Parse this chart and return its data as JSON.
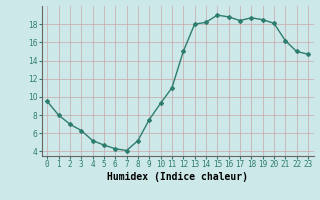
{
  "x": [
    0,
    1,
    2,
    3,
    4,
    5,
    6,
    7,
    8,
    9,
    10,
    11,
    12,
    13,
    14,
    15,
    16,
    17,
    18,
    19,
    20,
    21,
    22,
    23
  ],
  "y": [
    9.5,
    8.0,
    7.0,
    6.3,
    5.2,
    4.7,
    4.3,
    4.1,
    5.2,
    7.5,
    9.3,
    11.0,
    15.0,
    18.0,
    18.2,
    19.0,
    18.8,
    18.4,
    18.7,
    18.5,
    18.1,
    16.2,
    15.0,
    14.7
  ],
  "line_color": "#2e7d6e",
  "marker": "D",
  "marker_size": 2,
  "background_color": "#cde8e8",
  "grid_color": "#b8d0d0",
  "xlabel": "Humidex (Indice chaleur)",
  "xlabel_fontsize": 7,
  "ylabel_ticks": [
    4,
    6,
    8,
    10,
    12,
    14,
    16,
    18
  ],
  "xtick_labels": [
    "0",
    "1",
    "2",
    "3",
    "4",
    "5",
    "6",
    "7",
    "8",
    "9",
    "10",
    "11",
    "12",
    "13",
    "14",
    "15",
    "16",
    "17",
    "18",
    "19",
    "20",
    "21",
    "22",
    "23"
  ],
  "ylim": [
    3.5,
    20.0
  ],
  "xlim": [
    -0.5,
    23.5
  ],
  "tick_color": "#2e7d6e",
  "axis_color": "#666666",
  "linewidth": 1.0
}
